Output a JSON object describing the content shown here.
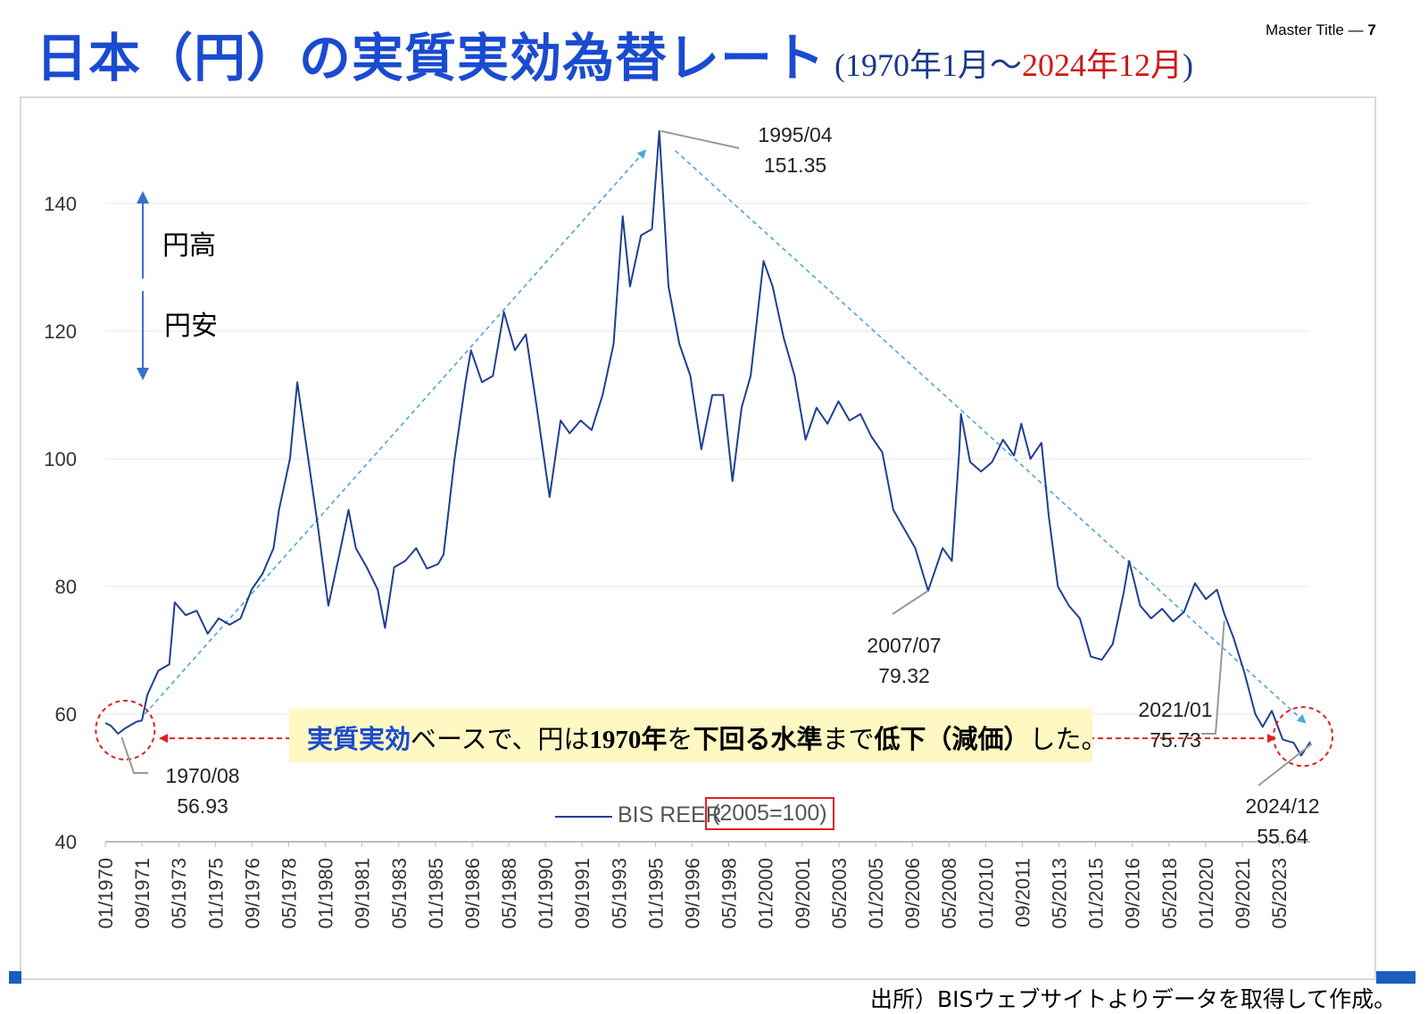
{
  "header": {
    "title_main": "日本（円）の実質実効為替レート",
    "title_range_open": "(1970年1月～",
    "title_range_end": "2024年12月",
    "title_range_close": ")",
    "master_label": "Master Title — ",
    "master_page": "7"
  },
  "source": "出所）BISウェブサイトよりデータを取得して作成。",
  "callout": {
    "part1": "実質実効",
    "part2": "ベースで、円は",
    "part3": "1970年",
    "part4": "を",
    "part5": "下回る水準",
    "part6": "まで",
    "part7": "低下（減価）",
    "part8": "した。"
  },
  "yen_labels": {
    "strong": "円高",
    "weak": "円安"
  },
  "annotations": [
    {
      "date": "1995/04",
      "value": "151.35"
    },
    {
      "date": "1970/08",
      "value": "56.93"
    },
    {
      "date": "2007/07",
      "value": "79.32"
    },
    {
      "date": "2021/01",
      "value": "75.73"
    },
    {
      "date": "2024/12",
      "value": "55.64"
    }
  ],
  "colors": {
    "line": "#1f3f94",
    "title": "#1a4bd0",
    "trend": "#4aa6e0",
    "red": "#e02020"
  },
  "chart_data": {
    "type": "line",
    "xlabel": "",
    "ylabel": "",
    "ylim": [
      40,
      155
    ],
    "yticks": [
      40,
      60,
      80,
      100,
      120,
      140
    ],
    "grid": true,
    "legend": "bottom-center",
    "x_ticks": [
      "01/1970",
      "09/1971",
      "05/1973",
      "01/1975",
      "09/1976",
      "05/1978",
      "01/1980",
      "09/1981",
      "05/1983",
      "01/1985",
      "09/1986",
      "05/1988",
      "01/1990",
      "09/1991",
      "05/1993",
      "01/1995",
      "09/1996",
      "05/1998",
      "01/2000",
      "09/2001",
      "05/2003",
      "01/2005",
      "09/2006",
      "05/2008",
      "01/2010",
      "09/2011",
      "05/2013",
      "01/2015",
      "09/2016",
      "05/2018",
      "01/2020",
      "09/2021",
      "05/2023"
    ],
    "series": [
      {
        "name": "BIS REER",
        "unit": "(2005=100)",
        "points": [
          [
            "1970/01",
            58.6
          ],
          [
            "1970/04",
            58.2
          ],
          [
            "1970/08",
            56.93
          ],
          [
            "1970/12",
            57.8
          ],
          [
            "1971/06",
            58.8
          ],
          [
            "1971/09",
            59.0
          ],
          [
            "1971/12",
            63.0
          ],
          [
            "1972/06",
            66.8
          ],
          [
            "1972/12",
            67.8
          ],
          [
            "1973/03",
            77.5
          ],
          [
            "1973/09",
            75.5
          ],
          [
            "1974/03",
            76.2
          ],
          [
            "1974/09",
            72.6
          ],
          [
            "1975/03",
            75.0
          ],
          [
            "1975/09",
            74.0
          ],
          [
            "1976/03",
            75.0
          ],
          [
            "1976/09",
            79.5
          ],
          [
            "1977/03",
            82.0
          ],
          [
            "1977/09",
            86.0
          ],
          [
            "1977/12",
            92.0
          ],
          [
            "1978/06",
            100.0
          ],
          [
            "1978/10",
            112.0
          ],
          [
            "1979/03",
            102.0
          ],
          [
            "1979/09",
            90.0
          ],
          [
            "1980/03",
            77.0
          ],
          [
            "1980/09",
            85.0
          ],
          [
            "1981/02",
            92.0
          ],
          [
            "1981/06",
            86.0
          ],
          [
            "1981/12",
            83.0
          ],
          [
            "1982/06",
            79.5
          ],
          [
            "1982/10",
            73.5
          ],
          [
            "1983/03",
            83.0
          ],
          [
            "1983/09",
            84.0
          ],
          [
            "1984/03",
            86.0
          ],
          [
            "1984/09",
            82.8
          ],
          [
            "1985/03",
            83.5
          ],
          [
            "1985/06",
            85.0
          ],
          [
            "1985/12",
            100.0
          ],
          [
            "1986/06",
            112.0
          ],
          [
            "1986/09",
            117.0
          ],
          [
            "1987/03",
            112.0
          ],
          [
            "1987/09",
            113.0
          ],
          [
            "1988/03",
            123.0
          ],
          [
            "1988/09",
            117.0
          ],
          [
            "1989/03",
            119.5
          ],
          [
            "1989/09",
            108.0
          ],
          [
            "1990/04",
            94.0
          ],
          [
            "1990/10",
            106.0
          ],
          [
            "1991/03",
            104.0
          ],
          [
            "1991/09",
            106.0
          ],
          [
            "1992/03",
            104.5
          ],
          [
            "1992/09",
            110.0
          ],
          [
            "1993/03",
            118.0
          ],
          [
            "1993/08",
            138.0
          ],
          [
            "1993/12",
            127.0
          ],
          [
            "1994/06",
            135.0
          ],
          [
            "1994/12",
            136.0
          ],
          [
            "1995/04",
            151.35
          ],
          [
            "1995/09",
            127.0
          ],
          [
            "1996/03",
            118.0
          ],
          [
            "1996/09",
            113.0
          ],
          [
            "1997/03",
            101.5
          ],
          [
            "1997/09",
            110.0
          ],
          [
            "1998/03",
            110.0
          ],
          [
            "1998/08",
            96.5
          ],
          [
            "1999/01",
            108.0
          ],
          [
            "1999/06",
            113.0
          ],
          [
            "2000/01",
            131.0
          ],
          [
            "2000/06",
            127.0
          ],
          [
            "2000/12",
            119.0
          ],
          [
            "2001/06",
            113.0
          ],
          [
            "2001/12",
            103.0
          ],
          [
            "2002/06",
            108.0
          ],
          [
            "2002/12",
            105.5
          ],
          [
            "2003/06",
            109.0
          ],
          [
            "2003/12",
            106.0
          ],
          [
            "2004/06",
            107.0
          ],
          [
            "2004/12",
            103.5
          ],
          [
            "2005/06",
            101.0
          ],
          [
            "2005/12",
            92.0
          ],
          [
            "2006/06",
            89.0
          ],
          [
            "2006/12",
            86.0
          ],
          [
            "2007/07",
            79.32
          ],
          [
            "2008/03",
            86.0
          ],
          [
            "2008/08",
            84.0
          ],
          [
            "2008/12",
            101.0
          ],
          [
            "2009/01",
            107.0
          ],
          [
            "2009/06",
            99.5
          ],
          [
            "2009/12",
            98.0
          ],
          [
            "2010/06",
            99.5
          ],
          [
            "2010/12",
            103.0
          ],
          [
            "2011/06",
            100.5
          ],
          [
            "2011/10",
            105.5
          ],
          [
            "2012/03",
            100.0
          ],
          [
            "2012/09",
            102.5
          ],
          [
            "2013/01",
            91.0
          ],
          [
            "2013/06",
            80.0
          ],
          [
            "2013/12",
            77.0
          ],
          [
            "2014/06",
            75.0
          ],
          [
            "2014/12",
            69.0
          ],
          [
            "2015/06",
            68.5
          ],
          [
            "2015/12",
            71.0
          ],
          [
            "2016/06",
            79.0
          ],
          [
            "2016/09",
            84.0
          ],
          [
            "2017/03",
            77.0
          ],
          [
            "2017/09",
            75.0
          ],
          [
            "2018/03",
            76.5
          ],
          [
            "2018/09",
            74.5
          ],
          [
            "2019/03",
            76.0
          ],
          [
            "2019/09",
            80.5
          ],
          [
            "2020/03",
            78.0
          ],
          [
            "2020/09",
            79.5
          ],
          [
            "2021/01",
            75.73
          ],
          [
            "2021/06",
            72.0
          ],
          [
            "2021/12",
            66.5
          ],
          [
            "2022/06",
            60.0
          ],
          [
            "2022/10",
            58.0
          ],
          [
            "2023/03",
            60.5
          ],
          [
            "2023/09",
            56.0
          ],
          [
            "2024/03",
            55.5
          ],
          [
            "2024/07",
            53.5
          ],
          [
            "2024/12",
            55.64
          ]
        ]
      }
    ]
  }
}
